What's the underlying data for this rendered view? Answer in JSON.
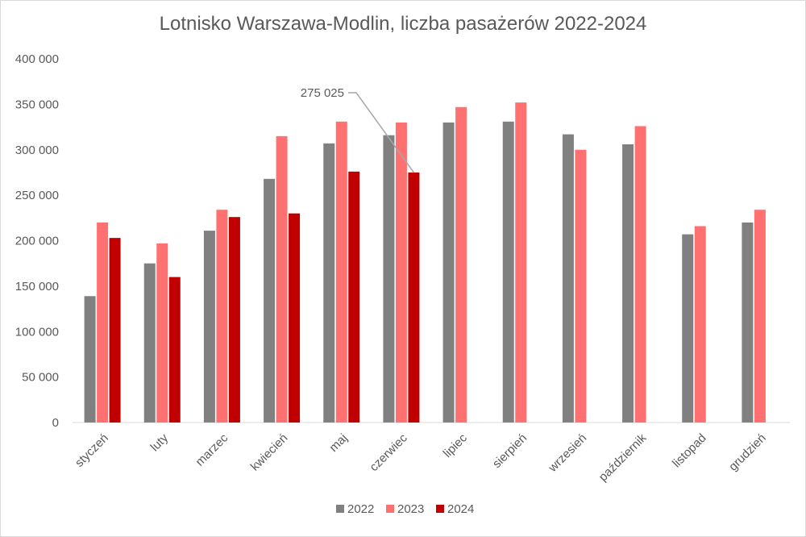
{
  "chart_data": {
    "type": "bar",
    "title": "Lotnisko Warszawa-Modlin, liczba pasażerów 2022-2024",
    "categories": [
      "styczeń",
      "luty",
      "marzec",
      "kwiecień",
      "maj",
      "czerwiec",
      "lipiec",
      "sierpień",
      "wrzesień",
      "październik",
      "listopad",
      "grudzień"
    ],
    "series": [
      {
        "name": "2022",
        "color": "#808080",
        "values": [
          139000,
          175000,
          211000,
          268000,
          307000,
          316000,
          330000,
          331000,
          317000,
          306000,
          207000,
          220000
        ]
      },
      {
        "name": "2023",
        "color": "#ff7171",
        "values": [
          220000,
          197000,
          234000,
          315000,
          331000,
          330000,
          347000,
          352000,
          300000,
          326000,
          216000,
          234000
        ]
      },
      {
        "name": "2024",
        "color": "#c00000",
        "values": [
          203000,
          160000,
          226000,
          230000,
          276000,
          275025,
          null,
          null,
          null,
          null,
          null,
          null
        ]
      }
    ],
    "ylim": [
      0,
      400000
    ],
    "yticks": [
      "0",
      "50 000",
      "100 000",
      "150 000",
      "200 000",
      "250 000",
      "300 000",
      "350 000",
      "400 000"
    ],
    "annotation": {
      "text": "275 025",
      "series": "2024",
      "category": "czerwiec"
    },
    "grid": false,
    "legend_position": "bottom"
  }
}
